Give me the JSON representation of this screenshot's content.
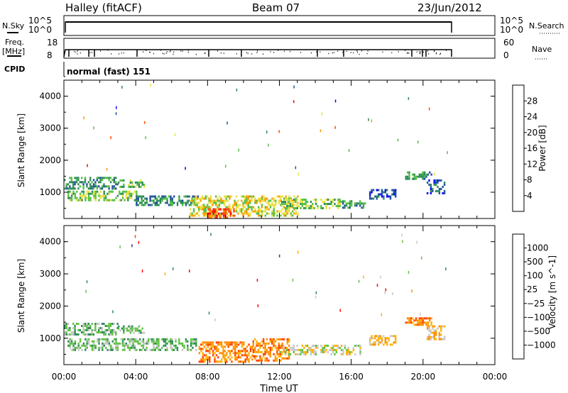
{
  "header": {
    "station": "Halley (fitACF)",
    "beam": "Beam 07",
    "date": "23/Jun/2012"
  },
  "strips": {
    "nsky_label": "N.Sky",
    "nsky_ticks": [
      "10^5",
      "10^0"
    ],
    "nsearch_label": "N.Search",
    "nsearch_ticks": [
      "10^5",
      "10^0"
    ],
    "freq_label": "Freq.",
    "freq_unit": "[MHz]",
    "freq_ticks": [
      "18",
      "8"
    ],
    "nave_label": "Nave",
    "nave_ticks": [
      "60",
      "0"
    ],
    "cpid_label": "CPID",
    "cpid_text": "normal (fast) 151"
  },
  "chart_data": [
    {
      "type": "heatmap",
      "quantity": "power",
      "ylabel": "Slant Range [km]",
      "yticks": [
        "4000",
        "3000",
        "2000",
        "1000"
      ],
      "ylim": [
        180,
        4500
      ],
      "xlim": [
        0,
        24
      ],
      "colorbar_label": "Power [dB]",
      "colorbar_ticks": [
        "28",
        "24",
        "20",
        "16",
        "12",
        "8",
        "4"
      ],
      "colorbar_colors": [
        "#0000ff",
        "#2050a0",
        "#2e8b57",
        "#55c043",
        "#e8e040",
        "#ff9a00",
        "#ff4a00",
        "#ff0000"
      ],
      "echo_regions": [
        {
          "x": [
            0.0,
            3.0
          ],
          "y": [
            1100,
            1480
          ],
          "level": 2
        },
        {
          "x": [
            3.0,
            4.5
          ],
          "y": [
            1150,
            1400
          ],
          "level": 3
        },
        {
          "x": [
            0.2,
            4.0
          ],
          "y": [
            750,
            1050
          ],
          "level": 3
        },
        {
          "x": [
            4.0,
            7.5
          ],
          "y": [
            600,
            900
          ],
          "level": 2
        },
        {
          "x": [
            7.0,
            13.0
          ],
          "y": [
            300,
            900
          ],
          "level": 4
        },
        {
          "x": [
            8.0,
            9.5
          ],
          "y": [
            200,
            500
          ],
          "level": 6
        },
        {
          "x": [
            12.0,
            15.5
          ],
          "y": [
            500,
            800
          ],
          "level": 3
        },
        {
          "x": [
            15.5,
            16.8
          ],
          "y": [
            550,
            750
          ],
          "level": 2
        },
        {
          "x": [
            17.0,
            18.5
          ],
          "y": [
            800,
            1100
          ],
          "level": 1
        },
        {
          "x": [
            19.0,
            20.5
          ],
          "y": [
            1400,
            1650
          ],
          "level": 2
        },
        {
          "x": [
            20.2,
            21.2
          ],
          "y": [
            1000,
            1400
          ],
          "level": 1
        }
      ]
    },
    {
      "type": "heatmap",
      "quantity": "velocity",
      "xlabel": "Time UT",
      "xticks": [
        "00:00",
        "04:00",
        "08:00",
        "12:00",
        "16:00",
        "20:00",
        "00:00"
      ],
      "ylabel": "Slant Range [km]",
      "yticks": [
        "4000",
        "3000",
        "2000",
        "1000"
      ],
      "ylim": [
        180,
        4500
      ],
      "xlim": [
        0,
        24
      ],
      "colorbar_label": "Velocity [m s^-1]",
      "colorbar_ticks": [
        "1000",
        "500",
        "100",
        "25",
        "−25",
        "−100",
        "−500",
        "−1000"
      ],
      "colorbar_colors": [
        "#1c3ca8",
        "#2e8b57",
        "#5fc243",
        "#c8c8c8",
        "#ffb000",
        "#ff8c00",
        "#ff4000",
        "#ff0000"
      ],
      "echo_regions": [
        {
          "x": [
            0.0,
            3.0
          ],
          "y": [
            1100,
            1480
          ],
          "level": 2
        },
        {
          "x": [
            3.0,
            4.5
          ],
          "y": [
            1150,
            1400
          ],
          "level": 2
        },
        {
          "x": [
            0.2,
            7.5
          ],
          "y": [
            650,
            1000
          ],
          "level": 2
        },
        {
          "x": [
            7.5,
            10.5
          ],
          "y": [
            250,
            900
          ],
          "level": 5
        },
        {
          "x": [
            10.5,
            12.5
          ],
          "y": [
            300,
            1000
          ],
          "level": 5
        },
        {
          "x": [
            12.0,
            16.5
          ],
          "y": [
            500,
            800
          ],
          "level": 3
        },
        {
          "x": [
            17.0,
            18.5
          ],
          "y": [
            800,
            1100
          ],
          "level": 4
        },
        {
          "x": [
            19.0,
            20.5
          ],
          "y": [
            1400,
            1650
          ],
          "level": 5
        },
        {
          "x": [
            20.2,
            21.2
          ],
          "y": [
            1000,
            1400
          ],
          "level": 4
        }
      ]
    }
  ]
}
